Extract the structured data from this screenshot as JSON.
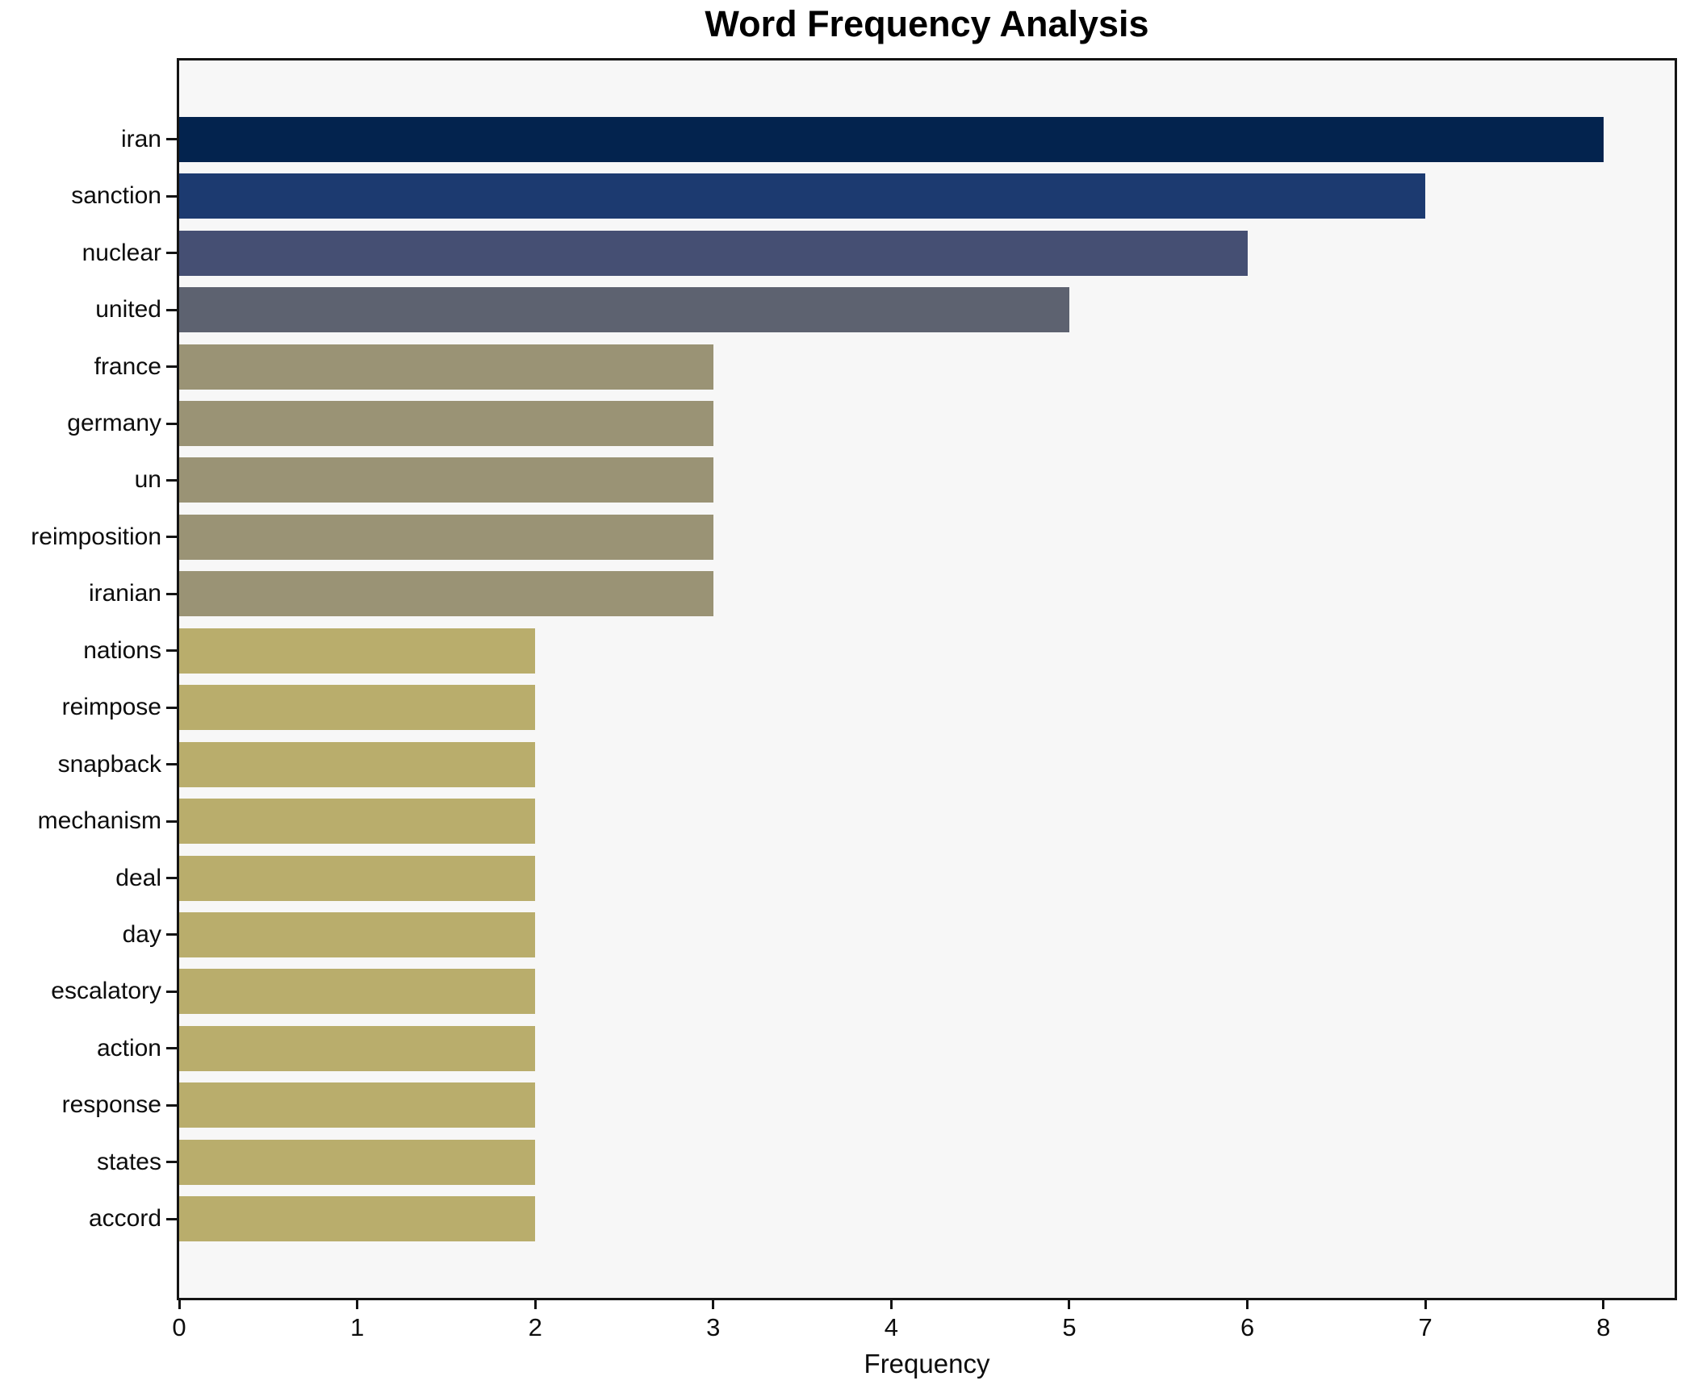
{
  "chart": {
    "title": "Word Frequency Analysis",
    "xlabel": "Frequency"
  },
  "chart_data": {
    "type": "bar",
    "orientation": "horizontal",
    "title": "Word Frequency Analysis",
    "xlabel": "Frequency",
    "ylabel": "",
    "grid": false,
    "legend": false,
    "xlim": [
      0,
      8.4
    ],
    "xticks": [
      0,
      1,
      2,
      3,
      4,
      5,
      6,
      7,
      8
    ],
    "plot_background": "#f7f7f7",
    "figure_background": "#ffffff",
    "spine_color": "#141414",
    "categories": [
      "iran",
      "sanction",
      "nuclear",
      "united",
      "france",
      "germany",
      "un",
      "reimposition",
      "iranian",
      "nations",
      "reimpose",
      "snapback",
      "mechanism",
      "deal",
      "day",
      "escalatory",
      "action",
      "response",
      "states",
      "accord"
    ],
    "values": [
      8,
      7,
      6,
      5,
      3,
      3,
      3,
      3,
      3,
      2,
      2,
      2,
      2,
      2,
      2,
      2,
      2,
      2,
      2,
      2
    ],
    "bar_colors": [
      "#03234e",
      "#1c3a70",
      "#454f73",
      "#5d6270",
      "#9a9375",
      "#9a9375",
      "#9a9375",
      "#9a9375",
      "#9a9375",
      "#b9ad6c",
      "#b9ad6c",
      "#b9ad6c",
      "#b9ad6c",
      "#b9ad6c",
      "#b9ad6c",
      "#b9ad6c",
      "#b9ad6c",
      "#b9ad6c",
      "#b9ad6c",
      "#b9ad6c"
    ]
  }
}
